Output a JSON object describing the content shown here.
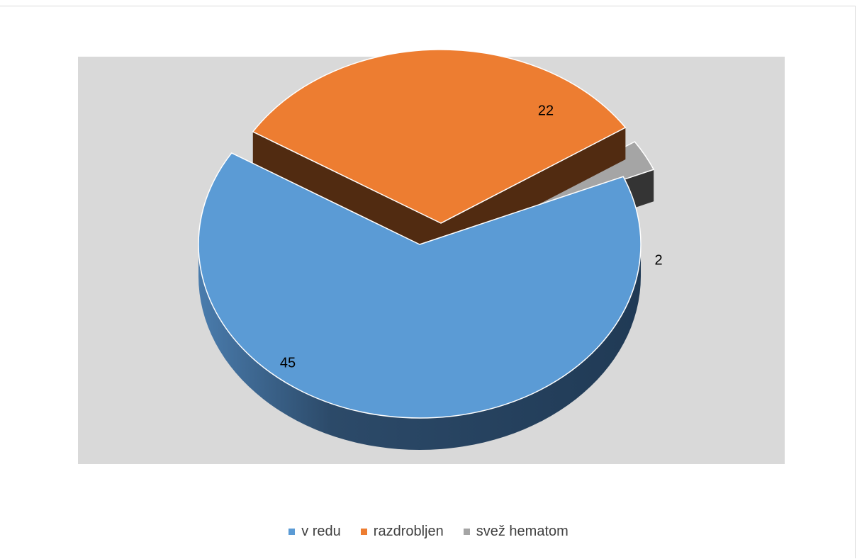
{
  "chart_data": {
    "type": "pie",
    "style": "3d-exploded",
    "categories": [
      "v redu",
      "razdrobljen",
      "svež hematom"
    ],
    "values": [
      45,
      22,
      2
    ],
    "colors": [
      "#5B9BD5",
      "#ED7D31",
      "#A5A5A5"
    ],
    "data_labels": [
      "45",
      "22",
      "2"
    ],
    "legend_position": "bottom",
    "background": "#D9D9D9"
  }
}
